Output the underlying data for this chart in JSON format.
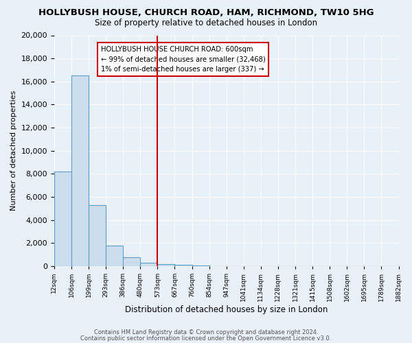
{
  "title": "HOLLYBUSH HOUSE, CHURCH ROAD, HAM, RICHMOND, TW10 5HG",
  "subtitle": "Size of property relative to detached houses in London",
  "xlabel": "Distribution of detached houses by size in London",
  "ylabel": "Number of detached properties",
  "bar_values": [
    8200,
    16500,
    5300,
    1750,
    750,
    300,
    150,
    100,
    75,
    0,
    0,
    0,
    0,
    0,
    0,
    0,
    0,
    0,
    0,
    0
  ],
  "bar_labels": [
    "12sqm",
    "106sqm",
    "199sqm",
    "293sqm",
    "386sqm",
    "480sqm",
    "573sqm",
    "667sqm",
    "760sqm",
    "854sqm",
    "947sqm",
    "1041sqm",
    "1134sqm",
    "1228sqm",
    "1321sqm",
    "1415sqm",
    "1508sqm",
    "1602sqm",
    "1695sqm",
    "1789sqm"
  ],
  "extra_label": "1882sqm",
  "bar_color": "#ccdded",
  "bar_edge_color": "#5b9ec9",
  "vline_x": 6.0,
  "vline_color": "#cc0000",
  "ylim": [
    0,
    20000
  ],
  "yticks": [
    0,
    2000,
    4000,
    6000,
    8000,
    10000,
    12000,
    14000,
    16000,
    18000,
    20000
  ],
  "annotation_title": "HOLLYBUSH HOUSE CHURCH ROAD: 600sqm",
  "annotation_line1": "← 99% of detached houses are smaller (32,468)",
  "annotation_line2": "1% of semi-detached houses are larger (337) →",
  "footer1": "Contains HM Land Registry data © Crown copyright and database right 2024.",
  "footer2": "Contains public sector information licensed under the Open Government Licence v3.0.",
  "bg_color": "#e8f0f8",
  "plot_bg_color": "#e8f0f8"
}
